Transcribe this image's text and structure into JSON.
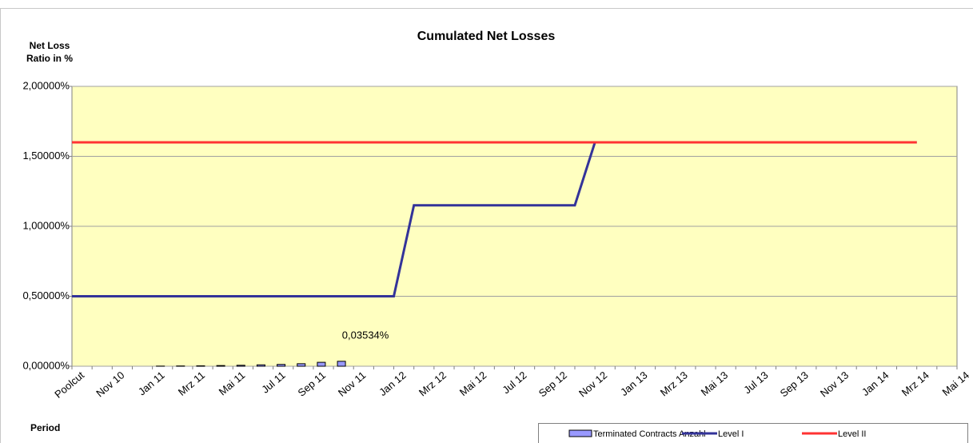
{
  "chart_data": {
    "type": "combo",
    "title": "Cumulated Net Losses",
    "ylabel": [
      "Net Loss",
      "Ratio in %"
    ],
    "xlabel": "Period",
    "categories": [
      "Poolcut",
      null,
      "Nov 10",
      null,
      "Jan 11",
      null,
      "Mrz 11",
      null,
      "Mai 11",
      null,
      "Jul 11",
      null,
      "Sep 11",
      null,
      "Nov 11",
      null,
      "Jan 12",
      null,
      "Mrz 12",
      null,
      "Mai 12",
      null,
      "Jul 12",
      null,
      "Sep 12",
      null,
      "Nov 12",
      null,
      "Jan 13",
      null,
      "Mrz 13",
      null,
      "Mai 13",
      null,
      "Jul 13",
      null,
      "Sep 13",
      null,
      "Nov 13",
      null,
      "Jan 14",
      null,
      "Mrz 14",
      null,
      "Mai 14"
    ],
    "ylim": [
      0,
      2
    ],
    "yticks": [
      {
        "value": 0,
        "label": "0,00000%"
      },
      {
        "value": 0.5,
        "label": "0,50000%"
      },
      {
        "value": 1,
        "label": "1,00000%"
      },
      {
        "value": 1.5,
        "label": "1,50000%"
      },
      {
        "value": 2,
        "label": "2,00000%"
      }
    ],
    "grid": true,
    "legend": "bottom-right",
    "series": [
      {
        "name": "Terminated Contracts Anzahl",
        "type": "bar",
        "color": "#9999ff",
        "values": [
          null,
          null,
          null,
          null,
          0.001,
          0.002,
          0.003,
          0.005,
          0.007,
          0.01,
          0.013,
          0.018,
          0.028,
          0.03534,
          null,
          null,
          null,
          null,
          null,
          null,
          null,
          null,
          null,
          null,
          null,
          null,
          null,
          null,
          null,
          null,
          null,
          null,
          null,
          null,
          null,
          null,
          null,
          null,
          null,
          null,
          null,
          null,
          null,
          null,
          null
        ],
        "value_labels": [
          null,
          null,
          null,
          null,
          null,
          null,
          null,
          null,
          null,
          null,
          null,
          null,
          null,
          "0,03534%",
          null,
          null,
          null,
          null,
          null,
          null,
          null,
          null,
          null,
          null,
          null,
          null,
          null,
          null,
          null,
          null,
          null,
          null,
          null,
          null,
          null,
          null,
          null,
          null,
          null,
          null,
          null,
          null,
          null,
          null,
          null
        ]
      },
      {
        "name": "Level I",
        "type": "line",
        "color": "#333399",
        "values": [
          0.5,
          0.5,
          0.5,
          0.5,
          0.5,
          0.5,
          0.5,
          0.5,
          0.5,
          0.5,
          0.5,
          0.5,
          0.5,
          0.5,
          0.5,
          0.5,
          0.5,
          1.15,
          1.15,
          1.15,
          1.15,
          1.15,
          1.15,
          1.15,
          1.15,
          1.15,
          1.6,
          1.6,
          1.6,
          1.6,
          1.6,
          1.6,
          1.6,
          1.6,
          1.6,
          1.6,
          1.6,
          1.6,
          1.6,
          1.6,
          1.6,
          1.6,
          1.6,
          null,
          null
        ]
      },
      {
        "name": "Level II",
        "type": "line",
        "color": "#ff3333",
        "values": [
          1.6,
          1.6,
          1.6,
          1.6,
          1.6,
          1.6,
          1.6,
          1.6,
          1.6,
          1.6,
          1.6,
          1.6,
          1.6,
          1.6,
          1.6,
          1.6,
          1.6,
          1.6,
          1.6,
          1.6,
          1.6,
          1.6,
          1.6,
          1.6,
          1.6,
          1.6,
          1.6,
          1.6,
          1.6,
          1.6,
          1.6,
          1.6,
          1.6,
          1.6,
          1.6,
          1.6,
          1.6,
          1.6,
          1.6,
          1.6,
          1.6,
          1.6,
          1.6,
          null,
          null
        ]
      }
    ]
  }
}
